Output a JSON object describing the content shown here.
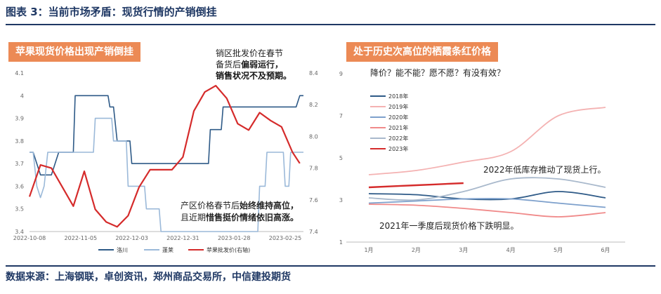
{
  "figure_title": "图表 3：当前市场矛盾：现货行情的产销倒挂",
  "source": "数据来源：上海钢联，卓创资讯，郑州商品交易所，中信建投期货",
  "colors": {
    "navy": "#1f3864",
    "orange": "#ec8a55",
    "red": "#d52b2b",
    "steel": "#2e5a87",
    "light": "#9bb9d9"
  },
  "chart_data": [
    {
      "type": "line",
      "panel_title": "苹果现货价格出现产销倒挂",
      "x_ticks": [
        "2022-10-08",
        "2022-11-05",
        "2022-12-03",
        "2022-12-31",
        "2023-01-28",
        "2023-02-25"
      ],
      "y_left": {
        "ticks": [
          "3.4",
          "3.5",
          "3.6",
          "3.7",
          "3.8",
          "3.9",
          "4",
          "4.1"
        ],
        "lim": [
          3.4,
          4.1
        ]
      },
      "y_right": {
        "ticks": [
          "7.4",
          "7.6",
          "7.8",
          "8.0",
          "8.2",
          "8.4"
        ],
        "lim": [
          7.4,
          8.4
        ]
      },
      "grid": false,
      "legend_position": "bottom",
      "series": [
        {
          "name": "洛川",
          "axis": "left",
          "color": "#2e5a87",
          "x": [
            "2022-10-08",
            "2022-10-10",
            "2022-10-12",
            "2022-10-14",
            "2022-10-20",
            "2022-10-22",
            "2022-10-24",
            "2022-11-01",
            "2022-11-02",
            "2022-11-20",
            "2022-11-21",
            "2022-11-23",
            "2022-11-25",
            "2022-12-02",
            "2022-12-03",
            "2023-01-14",
            "2023-01-15",
            "2023-01-21",
            "2023-01-22",
            "2023-02-25",
            "2023-03-03",
            "2023-03-05",
            "2023-03-07"
          ],
          "y": [
            3.75,
            3.75,
            3.7,
            3.65,
            3.65,
            3.7,
            3.75,
            3.75,
            4.0,
            4.0,
            3.95,
            3.95,
            3.8,
            3.8,
            3.7,
            3.7,
            3.85,
            3.85,
            3.95,
            3.95,
            3.95,
            4.0,
            4.0
          ]
        },
        {
          "name": "蓬莱",
          "axis": "left",
          "color": "#9bb9d9",
          "x": [
            "2022-10-08",
            "2022-10-10",
            "2022-10-12",
            "2022-10-14",
            "2022-10-16",
            "2022-10-18",
            "2022-10-20",
            "2022-10-22",
            "2022-11-12",
            "2022-11-13",
            "2022-11-22",
            "2022-11-23",
            "2022-11-30",
            "2022-12-01",
            "2022-12-10",
            "2022-12-11",
            "2022-12-18",
            "2022-12-19",
            "2023-02-10",
            "2023-02-11",
            "2023-02-14",
            "2023-02-15",
            "2023-02-24",
            "2023-02-25",
            "2023-02-27",
            "2023-02-28",
            "2023-03-07"
          ],
          "y": [
            3.75,
            3.75,
            3.6,
            3.55,
            3.6,
            3.75,
            3.75,
            3.75,
            3.75,
            3.9,
            3.9,
            3.8,
            3.8,
            3.6,
            3.6,
            3.5,
            3.5,
            3.4,
            3.4,
            3.6,
            3.6,
            3.75,
            3.75,
            3.6,
            3.6,
            3.75,
            3.75
          ]
        },
        {
          "name": "苹果批发价(右轴)",
          "axis": "right",
          "color": "#d52b2b",
          "x": [
            "2022-10-08",
            "2022-10-14",
            "2022-10-20",
            "2022-10-26",
            "2022-11-01",
            "2022-11-07",
            "2022-11-13",
            "2022-11-19",
            "2022-11-25",
            "2022-12-01",
            "2022-12-07",
            "2022-12-13",
            "2022-12-19",
            "2022-12-25",
            "2022-12-31",
            "2023-01-06",
            "2023-01-12",
            "2023-01-18",
            "2023-01-24",
            "2023-01-30",
            "2023-02-05",
            "2023-02-11",
            "2023-02-17",
            "2023-02-23",
            "2023-03-01",
            "2023-03-05"
          ],
          "y": [
            7.62,
            7.82,
            7.8,
            7.68,
            7.56,
            7.78,
            7.54,
            7.46,
            7.43,
            7.5,
            7.68,
            7.79,
            7.79,
            7.79,
            7.87,
            8.16,
            8.28,
            8.32,
            8.24,
            8.08,
            8.04,
            8.15,
            8.1,
            8.06,
            7.9,
            7.83
          ]
        }
      ],
      "annotations": [
        {
          "lines": [
            "销区批发价在春节",
            "备货后偏弱运行，",
            "销售状况不及预期。"
          ],
          "bold_lines": [
            2
          ],
          "bold_tail": {
            "line": 1,
            "text": "偏弱运行，"
          }
        },
        {
          "lines": [
            "产区价格春节后始终维持高位，",
            "且近期惜售挺价情绪依旧高涨。"
          ],
          "bold_tail": [
            {
              "line": 0,
              "text": "始终维持高位，"
            },
            {
              "line": 1,
              "text": "惜售挺价情绪依旧高涨。"
            }
          ]
        }
      ]
    },
    {
      "type": "line",
      "panel_title": "处于历史次高位的栖霞条红价格",
      "subtitle": "降价？能不能？愿不愿？有没有效？",
      "x_ticks": [
        "1月",
        "2月",
        "3月",
        "4月",
        "5月",
        "6月"
      ],
      "y_ticks": [
        "1",
        "3",
        "5",
        "7",
        "9"
      ],
      "ylim": [
        1,
        9
      ],
      "grid": false,
      "legend_position": "top-left",
      "series": [
        {
          "name": "2018年",
          "color": "#2e5a87",
          "x": [
            1,
            2,
            3,
            4,
            5,
            6
          ],
          "y": [
            3.3,
            3.25,
            3.05,
            3.05,
            3.4,
            3.1
          ]
        },
        {
          "name": "2019年",
          "color": "#f4b2b2",
          "x": [
            1,
            2,
            3,
            4,
            5,
            6
          ],
          "y": [
            4.2,
            4.4,
            4.8,
            5.3,
            7.0,
            7.4
          ]
        },
        {
          "name": "2020年",
          "color": "#7da0cc",
          "x": [
            1,
            2,
            3,
            4,
            5,
            6
          ],
          "y": [
            2.85,
            2.95,
            3.05,
            3.05,
            2.85,
            2.65
          ]
        },
        {
          "name": "2021年",
          "color": "#f08a8a",
          "x": [
            1,
            2,
            3,
            4,
            5,
            6
          ],
          "y": [
            2.8,
            2.75,
            2.6,
            2.4,
            2.2,
            2.4
          ]
        },
        {
          "name": "2022年",
          "color": "#a9b9cc",
          "x": [
            1,
            2,
            3,
            4,
            5,
            6
          ],
          "y": [
            3.1,
            3.0,
            3.4,
            4.0,
            4.0,
            3.6
          ]
        },
        {
          "name": "2023年",
          "color": "#d52b2b",
          "x": [
            1,
            2,
            3
          ],
          "y": [
            3.6,
            3.7,
            3.8
          ]
        }
      ],
      "annotations": [
        "2022年低库存推动了现货上行。",
        "2021年一季度后现货价格下跌明显。"
      ]
    }
  ]
}
